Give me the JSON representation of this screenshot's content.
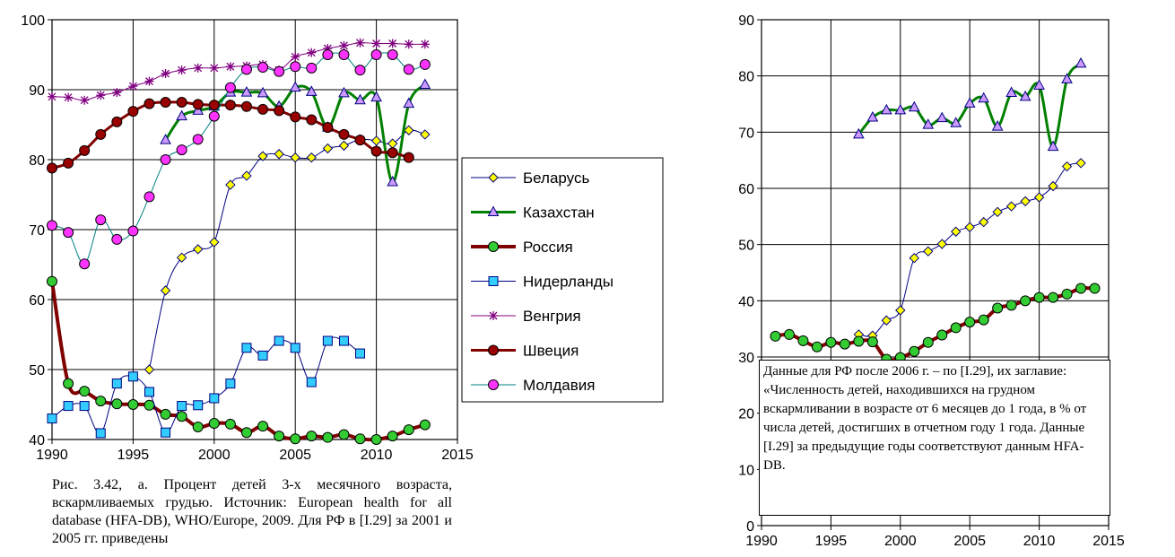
{
  "chart_data": [
    {
      "type": "line",
      "title": "",
      "xlabel": "",
      "ylabel": "",
      "xlim": [
        1990,
        2015
      ],
      "ylim": [
        40,
        100
      ],
      "xticks": [
        "1990",
        "1995",
        "2000",
        "2005",
        "2010",
        "2015"
      ],
      "yticks": [
        "40",
        "50",
        "60",
        "70",
        "80",
        "90",
        "100"
      ],
      "grid": true,
      "legend_position": "right",
      "series": [
        {
          "name": "Беларусь",
          "color": "#000080",
          "marker": "diamond",
          "marker_color": "#ffff00",
          "line_width": 1,
          "x": [
            1996,
            1997,
            1998,
            1999,
            2000,
            2001,
            2002,
            2003,
            2004,
            2005,
            2006,
            2007,
            2008,
            2009,
            2010,
            2011,
            2012,
            2013
          ],
          "y": [
            50.0,
            61.3,
            66.0,
            67.2,
            68.2,
            76.4,
            77.7,
            80.5,
            80.8,
            80.3,
            80.3,
            81.6,
            82.0,
            82.9,
            82.7,
            82.3,
            84.2,
            83.6
          ]
        },
        {
          "name": "Казахстан",
          "color": "#008000",
          "marker": "triangle",
          "marker_color": "#cc99ff",
          "line_width": 3,
          "x": [
            1997,
            1998,
            1999,
            2000,
            2001,
            2002,
            2003,
            2004,
            2005,
            2006,
            2007,
            2008,
            2009,
            2010,
            2011,
            2012,
            2013
          ],
          "y": [
            82.8,
            86.2,
            87.0,
            87.6,
            89.6,
            89.6,
            89.5,
            87.6,
            90.3,
            89.7,
            84.6,
            89.5,
            88.5,
            88.9,
            76.8,
            88.0,
            90.7
          ]
        },
        {
          "name": "Россия",
          "color": "#800000",
          "marker": "circle",
          "marker_color": "#33cc33",
          "line_width": 4,
          "x": [
            1990,
            1991,
            1992,
            1993,
            1994,
            1995,
            1996,
            1997,
            1998,
            1999,
            2000,
            2001,
            2002,
            2003,
            2004,
            2005,
            2006,
            2007,
            2008,
            2009,
            2010,
            2011,
            2012,
            2013
          ],
          "y": [
            62.6,
            48.0,
            46.9,
            45.5,
            45.1,
            45.0,
            44.9,
            43.6,
            43.3,
            41.8,
            42.3,
            42.2,
            41.0,
            41.9,
            40.5,
            40.1,
            40.5,
            40.3,
            40.7,
            40.1,
            40.0,
            40.5,
            41.4,
            42.1
          ]
        },
        {
          "name": "Нидерланды",
          "color": "#000080",
          "marker": "square",
          "marker_color": "#33ccff",
          "line_width": 1,
          "x": [
            1990,
            1991,
            1992,
            1993,
            1994,
            1995,
            1996,
            1997,
            1998,
            1999,
            2000,
            2001,
            2002,
            2003,
            2004,
            2005,
            2006,
            2007,
            2008,
            2009
          ],
          "y": [
            43.0,
            44.8,
            44.8,
            40.9,
            48.0,
            49.0,
            46.8,
            41.0,
            44.8,
            44.9,
            45.9,
            48.0,
            53.1,
            52.0,
            54.1,
            53.1,
            48.2,
            54.1,
            54.1,
            52.3
          ]
        },
        {
          "name": "Венгрия",
          "color": "#800080",
          "marker": "star",
          "marker_color": "#800080",
          "line_width": 1,
          "x": [
            1990,
            1991,
            1992,
            1993,
            1994,
            1995,
            1996,
            1997,
            1998,
            1999,
            2000,
            2001,
            2002,
            2003,
            2004,
            2005,
            2006,
            2007,
            2008,
            2009,
            2010,
            2011,
            2012,
            2013
          ],
          "y": [
            89.0,
            88.9,
            88.5,
            89.2,
            89.6,
            90.5,
            91.2,
            92.3,
            92.8,
            93.1,
            93.1,
            93.3,
            93.4,
            93.6,
            92.8,
            94.7,
            95.3,
            95.9,
            96.3,
            96.7,
            96.6,
            96.6,
            96.5,
            96.5
          ]
        },
        {
          "name": "Швеция",
          "color": "#800000",
          "marker": "circle",
          "marker_color": "#990000",
          "line_width": 3,
          "x": [
            1990,
            1991,
            1992,
            1993,
            1994,
            1995,
            1996,
            1997,
            1998,
            1999,
            2000,
            2001,
            2002,
            2003,
            2004,
            2005,
            2006,
            2007,
            2008,
            2009,
            2010,
            2011,
            2012
          ],
          "y": [
            78.8,
            79.5,
            81.3,
            83.6,
            85.4,
            86.9,
            88.0,
            88.2,
            88.2,
            87.9,
            87.8,
            87.8,
            87.6,
            87.2,
            87.0,
            86.1,
            85.7,
            84.6,
            83.6,
            82.8,
            81.2,
            81.0,
            80.3
          ]
        },
        {
          "name": "Молдавия",
          "color": "#008080",
          "marker": "circle",
          "marker_color": "#ff33ff",
          "line_width": 1,
          "x": [
            1990,
            1991,
            1992,
            1993,
            1994,
            1995,
            1996,
            1997,
            1998,
            1999,
            2000,
            2001,
            2002,
            2003,
            2004,
            2005,
            2006,
            2007,
            2008,
            2009,
            2010,
            2011,
            2012,
            2013
          ],
          "y": [
            70.6,
            69.6,
            65.1,
            71.4,
            68.6,
            69.8,
            74.7,
            80.0,
            81.4,
            82.9,
            86.2,
            90.3,
            92.9,
            93.2,
            92.6,
            93.3,
            93.1,
            95.0,
            95.0,
            92.8,
            95.0,
            95.0,
            92.9,
            93.6
          ]
        }
      ]
    },
    {
      "type": "line",
      "title": "",
      "xlabel": "",
      "ylabel": "",
      "xlim": [
        1990,
        2015
      ],
      "ylim": [
        0,
        90
      ],
      "xticks": [
        "1990",
        "1995",
        "2000",
        "2005",
        "2010",
        "2015"
      ],
      "yticks": [
        "0",
        "10",
        "20",
        "30",
        "40",
        "50",
        "60",
        "70",
        "80",
        "90"
      ],
      "grid": true,
      "legend_position": "none",
      "series": [
        {
          "color": "#008000",
          "marker": "triangle",
          "marker_color": "#cc99ff",
          "line_width": 3,
          "x": [
            1997,
            1998,
            1999,
            2000,
            2001,
            2002,
            2003,
            2004,
            2005,
            2006,
            2007,
            2008,
            2009,
            2010,
            2011,
            2012,
            2013
          ],
          "y": [
            69.6,
            72.6,
            73.9,
            73.9,
            74.4,
            71.3,
            72.5,
            71.6,
            75.1,
            76.0,
            71.0,
            77.0,
            76.3,
            78.3,
            67.4,
            79.4,
            82.2
          ]
        },
        {
          "color": "#000080",
          "marker": "diamond",
          "marker_color": "#ffff00",
          "line_width": 1,
          "x": [
            1997,
            1998,
            1999,
            2000,
            2001,
            2002,
            2003,
            2004,
            2005,
            2006,
            2007,
            2008,
            2009,
            2010,
            2011,
            2012,
            2013
          ],
          "y": [
            34.0,
            33.8,
            36.5,
            38.3,
            47.6,
            48.8,
            50.1,
            52.3,
            53.1,
            54.0,
            55.8,
            56.8,
            57.7,
            58.4,
            60.4,
            63.9,
            64.5
          ]
        },
        {
          "color": "#800000",
          "marker": "circle",
          "marker_color": "#33cc33",
          "line_width": 4,
          "x": [
            1991,
            1992,
            1993,
            1994,
            1995,
            1996,
            1997,
            1998,
            1999,
            2000,
            2001,
            2002,
            2003,
            2004,
            2005,
            2006,
            2007,
            2008,
            2009,
            2010,
            2011,
            2012,
            2013,
            2014
          ],
          "y": [
            33.7,
            34.0,
            32.9,
            31.8,
            32.6,
            32.3,
            32.8,
            32.7,
            29.6,
            29.9,
            31.0,
            32.6,
            33.9,
            35.2,
            36.2,
            36.6,
            38.7,
            39.2,
            40.0,
            40.6,
            40.6,
            41.2,
            42.2,
            42.2
          ]
        }
      ]
    }
  ],
  "legend": {
    "items": [
      {
        "label": "Беларусь",
        "color": "#000080",
        "marker": "diamond",
        "marker_color": "#ffff00",
        "line_width": 1
      },
      {
        "label": "Казахстан",
        "color": "#008000",
        "marker": "triangle",
        "marker_color": "#cc99ff",
        "line_width": 3
      },
      {
        "label": "Россия",
        "color": "#800000",
        "marker": "circle",
        "marker_color": "#33cc33",
        "line_width": 4
      },
      {
        "label": "Нидерланды",
        "color": "#000080",
        "marker": "square",
        "marker_color": "#33ccff",
        "line_width": 1
      },
      {
        "label": "Венгрия",
        "color": "#800080",
        "marker": "star",
        "marker_color": "#800080",
        "line_width": 1
      },
      {
        "label": "Швеция",
        "color": "#800000",
        "marker": "circle",
        "marker_color": "#990000",
        "line_width": 3
      },
      {
        "label": "Молдавия",
        "color": "#008080",
        "marker": "circle",
        "marker_color": "#ff33ff",
        "line_width": 1
      }
    ]
  },
  "caption": "Рис. 3.42, а. Процент детей 3-х месячного возраста, вскармливаемых грудью. Источник: European health for all database (HFA-DB), WHO/Europe, 2009. Для РФ в [I.29] за 2001 и 2005 гг. приведены",
  "note": "Данные для РФ после 2006 г. – по [I.29], их заглавие: «Численность детей, находившихся на грудном вскармливании в возрасте от 6 месяцев до 1 года, в % от числа детей, достигших в отчетном году 1 года. Данные [I.29] за предыдущие годы соответствуют данным HFA-DB."
}
